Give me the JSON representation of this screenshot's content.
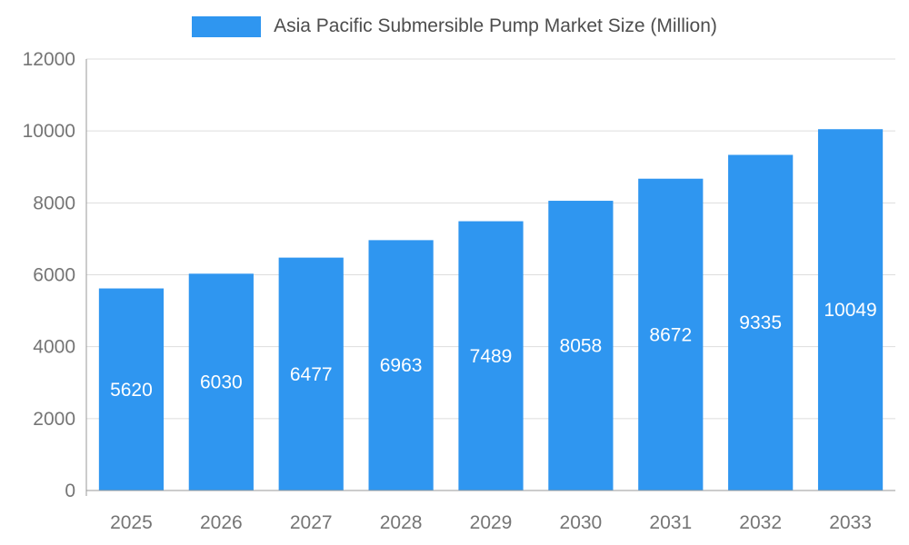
{
  "chart_data": {
    "type": "bar",
    "title": "Asia Pacific Submersible Pump Market Size (Million)",
    "categories": [
      "2025",
      "2026",
      "2027",
      "2028",
      "2029",
      "2030",
      "2031",
      "2032",
      "2033"
    ],
    "values": [
      5620,
      6030,
      6477,
      6963,
      7489,
      8058,
      8672,
      9335,
      10049
    ],
    "xlabel": "",
    "ylabel": "",
    "ylim": [
      0,
      12000
    ],
    "yticks": [
      0,
      2000,
      4000,
      6000,
      8000,
      10000,
      12000
    ],
    "grid": true,
    "legend_position": "top",
    "bar_color": "#2F96F0",
    "value_label_color": "#FFFFFF",
    "legend_text_color": "#4D4D4D",
    "axis_text_color": "#757575",
    "grid_color": "#DDDDDD",
    "axis_line_color": "#999999",
    "background_color": "#FFFFFF"
  }
}
